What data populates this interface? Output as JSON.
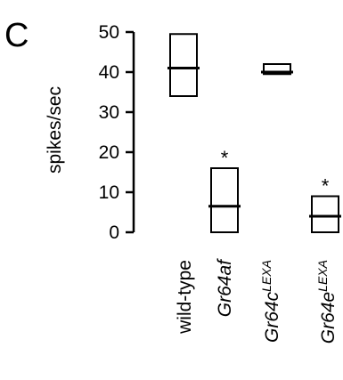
{
  "panel_label": "C",
  "chart_data": {
    "type": "box",
    "ylabel": "spikes/sec",
    "ylim": [
      0,
      50
    ],
    "yticks": [
      0,
      10,
      20,
      30,
      40,
      50
    ],
    "grid": false,
    "legend": "none",
    "categories": [
      {
        "base": "wild-type",
        "sup": "",
        "italic": false
      },
      {
        "base": "Gr64af",
        "sup": "",
        "italic": true
      },
      {
        "base": "Gr64c",
        "sup": "LEXA",
        "italic": true
      },
      {
        "base": "Gr64e",
        "sup": "LEXA",
        "italic": true
      }
    ],
    "boxes": [
      {
        "q1": 34,
        "median": 41,
        "q3": 49.5,
        "annotation": ""
      },
      {
        "q1": 0,
        "median": 6.5,
        "q3": 16,
        "annotation": "*"
      },
      {
        "q1": 39.5,
        "median": 40,
        "q3": 42,
        "annotation": ""
      },
      {
        "q1": 0,
        "median": 4,
        "q3": 9,
        "annotation": "*"
      }
    ]
  }
}
